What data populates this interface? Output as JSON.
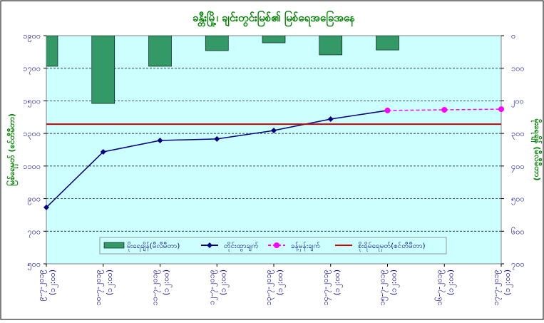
{
  "chart_data": {
    "type": "combo",
    "title": "ခန္တီးမြို့၊ ချင်းတွင်းမြစ်၏ မြစ်ရေအခြေအနေ",
    "y_label": "မြစ်ရေမှတ် (စင်တီမီတာ)",
    "y2_label": "မိုးရေချိန် (မီလီမီတာ)",
    "categories": [
      "၉-၇-၂၀၁၉",
      "၁၀-၇-၂၀၁၉",
      "၁၁-၇-၂၀၁၉",
      "၁၂-၇-၂၀၁၉",
      "၁၃-၇-၂၀၁၉",
      "၁၄-၇-၂၀၁၉",
      "၁၅-၇-၂၀၁၉",
      "၁၆-၇-၂၀၁၉",
      "၁၇-၇-၂၀၁၉"
    ],
    "times": [
      "(၁၂:၀၀)",
      "(၁၂:၀၀)",
      "(၁၂:၀၀)",
      "(၁၂:၀၀)",
      "(၁၂:၀၀)",
      "(၁၂:၀၀)",
      "(၁၂:၀၀)",
      "(၁၂:၀၀)",
      "(၁၂:၀၀)"
    ],
    "ylim": [
      500,
      1900
    ],
    "yticks": [
      {
        "value": 500,
        "label": "၅၀၀"
      },
      {
        "value": 700,
        "label": "၇၀၀"
      },
      {
        "value": 900,
        "label": "၉၀၀"
      },
      {
        "value": 1100,
        "label": "၁၁၀၀"
      },
      {
        "value": 1300,
        "label": "၁၃၀၀"
      },
      {
        "value": 1500,
        "label": "၁၅၀၀"
      },
      {
        "value": 1700,
        "label": "၁၇၀၀"
      },
      {
        "value": 1900,
        "label": "၁၉၀၀"
      }
    ],
    "y2lim": [
      700,
      0
    ],
    "y2ticks": [
      {
        "value": 0,
        "label": "၀"
      },
      {
        "value": 100,
        "label": "၁၀၀"
      },
      {
        "value": 200,
        "label": "၂၀၀"
      },
      {
        "value": 300,
        "label": "၃၀၀"
      },
      {
        "value": 400,
        "label": "၄၀၀"
      },
      {
        "value": 500,
        "label": "၅၀၀"
      },
      {
        "value": 600,
        "label": "၆၀၀"
      },
      {
        "value": 700,
        "label": "၇၀၀"
      }
    ],
    "grid": true,
    "series": [
      {
        "name": "မိုးရေချိန်(မီလီမီတာ)",
        "type": "bar",
        "axis": "y2",
        "color": "#339966",
        "values": [
          94,
          208,
          94,
          46,
          22,
          59,
          44,
          null,
          null
        ]
      },
      {
        "name": "တိုင်းထွာချက်",
        "type": "line",
        "marker": "diamond",
        "color": "#000080",
        "values": [
          846,
          1187,
          1257,
          1266,
          1318,
          1388,
          1441,
          null,
          null
        ]
      },
      {
        "name": "ခန့်မှန်းချက်",
        "type": "line",
        "marker": "circle",
        "dash": true,
        "color": "#ff00ff",
        "values": [
          null,
          null,
          null,
          null,
          null,
          null,
          1441,
          1445,
          1449
        ]
      },
      {
        "name": "စိုးရိမ်ရေမှတ်(စင်တီမီတာ)",
        "type": "line",
        "color": "#cc0000",
        "values": [
          1357,
          1357,
          1357,
          1357,
          1357,
          1357,
          1357,
          1357,
          1357
        ]
      }
    ]
  }
}
